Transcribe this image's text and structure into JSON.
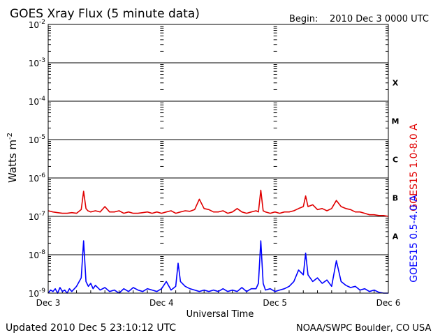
{
  "header": {
    "title": "GOES Xray Flux (5 minute data)",
    "begin_label": "Begin:",
    "begin_value": "2010 Dec 3 0000 UTC"
  },
  "footer": {
    "updated": "Updated 2010 Dec  5 23:10:12 UTC",
    "credit": "NOAA/SWPC Boulder, CO USA"
  },
  "colors": {
    "long_channel": "#e00000",
    "short_channel": "#0000ff",
    "frame": "#000000",
    "background": "#ffffff"
  },
  "chart_data": {
    "type": "line",
    "yscale": "log",
    "ylim": [
      1e-09,
      0.01
    ],
    "xlim": [
      0,
      72
    ],
    "x_unit": "hours since 2010 Dec 3 00:00 UTC",
    "ylabel": {
      "main": "Watts m",
      "exponent": "-2"
    },
    "xlabel": "Universal Time",
    "x_ticks": [
      {
        "x": 0,
        "label": "Dec 3"
      },
      {
        "x": 24,
        "label": "Dec 4"
      },
      {
        "x": 48,
        "label": "Dec 5"
      },
      {
        "x": 72,
        "label": "Dec 6"
      }
    ],
    "y_ticks": [
      {
        "value": 0.01,
        "base": "10",
        "exp": "-2"
      },
      {
        "value": 0.001,
        "base": "10",
        "exp": "-3"
      },
      {
        "value": 0.0001,
        "base": "10",
        "exp": "-4"
      },
      {
        "value": 1e-05,
        "base": "10",
        "exp": "-5"
      },
      {
        "value": 1e-06,
        "base": "10",
        "exp": "-6"
      },
      {
        "value": 1e-07,
        "base": "10",
        "exp": "-7"
      },
      {
        "value": 1e-08,
        "base": "10",
        "exp": "-8"
      },
      {
        "value": 1e-09,
        "base": "10",
        "exp": "-9"
      }
    ],
    "flare_classes": [
      {
        "label": "X",
        "value": 0.000316
      },
      {
        "label": "M",
        "value": 3.16e-05
      },
      {
        "label": "C",
        "value": 3.16e-06
      },
      {
        "label": "B",
        "value": 3.16e-07
      },
      {
        "label": "A",
        "value": 3.16e-08
      }
    ],
    "grid": true,
    "series": [
      {
        "name": "GOES15 1.0-8.0 A",
        "color": "#e00000",
        "x": [
          0,
          1,
          2,
          3,
          4,
          5,
          6,
          7,
          7.5,
          8,
          8.4,
          9,
          10,
          11,
          12,
          13,
          14,
          15,
          16,
          17,
          18,
          19,
          20,
          21,
          22,
          23,
          24,
          25,
          26,
          27,
          28,
          29,
          30,
          31,
          32,
          33,
          34,
          35,
          36,
          37,
          38,
          39,
          40,
          41,
          42,
          43,
          44,
          44.5,
          45,
          45.5,
          46,
          47,
          48,
          49,
          50,
          51,
          52,
          53,
          54,
          54.5,
          55,
          56,
          57,
          58,
          59,
          60,
          61,
          62,
          63,
          64,
          65,
          66,
          67,
          68,
          69,
          70,
          71,
          72
        ],
        "y": [
          1.4e-07,
          1.3e-07,
          1.25e-07,
          1.2e-07,
          1.2e-07,
          1.25e-07,
          1.2e-07,
          1.5e-07,
          4.5e-07,
          1.6e-07,
          1.4e-07,
          1.3e-07,
          1.4e-07,
          1.3e-07,
          1.8e-07,
          1.3e-07,
          1.3e-07,
          1.4e-07,
          1.2e-07,
          1.3e-07,
          1.2e-07,
          1.2e-07,
          1.25e-07,
          1.3e-07,
          1.2e-07,
          1.3e-07,
          1.2e-07,
          1.3e-07,
          1.4e-07,
          1.2e-07,
          1.3e-07,
          1.4e-07,
          1.35e-07,
          1.5e-07,
          2.8e-07,
          1.6e-07,
          1.5e-07,
          1.3e-07,
          1.3e-07,
          1.4e-07,
          1.2e-07,
          1.3e-07,
          1.6e-07,
          1.3e-07,
          1.2e-07,
          1.3e-07,
          1.4e-07,
          1.3e-07,
          4.8e-07,
          1.4e-07,
          1.3e-07,
          1.2e-07,
          1.3e-07,
          1.2e-07,
          1.3e-07,
          1.3e-07,
          1.4e-07,
          1.6e-07,
          1.8e-07,
          3.4e-07,
          1.8e-07,
          2e-07,
          1.5e-07,
          1.6e-07,
          1.4e-07,
          1.6e-07,
          2.6e-07,
          1.8e-07,
          1.6e-07,
          1.5e-07,
          1.3e-07,
          1.3e-07,
          1.2e-07,
          1.1e-07,
          1.1e-07,
          1.05e-07,
          1.05e-07,
          1e-07
        ]
      },
      {
        "name": "GOES15 0.5-4.0 A",
        "color": "#0000ff",
        "x": [
          0,
          0.5,
          1,
          1.5,
          2,
          2.5,
          3,
          3.5,
          4,
          4.5,
          5,
          6,
          7,
          7.5,
          8,
          8.5,
          9,
          9.5,
          10,
          11,
          12,
          13,
          14,
          15,
          16,
          17,
          18,
          19,
          20,
          21,
          22,
          23,
          24,
          25,
          26,
          27,
          27.5,
          28,
          29,
          30,
          31,
          32,
          33,
          34,
          35,
          36,
          37,
          38,
          39,
          40,
          41,
          42,
          43,
          44,
          44.5,
          45,
          45.5,
          46,
          47,
          48,
          49,
          50,
          51,
          52,
          53,
          54,
          54.5,
          55,
          56,
          57,
          58,
          59,
          60,
          61,
          62,
          63,
          64,
          65,
          66,
          67,
          68,
          69,
          70,
          71,
          72
        ],
        "y": [
          1e-09,
          1.2e-09,
          1.1e-09,
          1.3e-09,
          1e-09,
          1.4e-09,
          1.1e-09,
          1.2e-09,
          1e-09,
          1.3e-09,
          1.1e-09,
          1.5e-09,
          2.5e-09,
          2.3e-08,
          2e-09,
          1.5e-09,
          1.8e-09,
          1.3e-09,
          1.6e-09,
          1.2e-09,
          1.4e-09,
          1.1e-09,
          1.2e-09,
          1e-09,
          1.3e-09,
          1.1e-09,
          1.4e-09,
          1.2e-09,
          1.1e-09,
          1.3e-09,
          1.2e-09,
          1.1e-09,
          1.3e-09,
          2e-09,
          1.2e-09,
          1.5e-09,
          6e-09,
          2e-09,
          1.5e-09,
          1.3e-09,
          1.2e-09,
          1.1e-09,
          1.2e-09,
          1.1e-09,
          1.2e-09,
          1.1e-09,
          1.3e-09,
          1.1e-09,
          1.2e-09,
          1.1e-09,
          1.4e-09,
          1.1e-09,
          1.3e-09,
          1.3e-09,
          1.8e-09,
          2.3e-08,
          1.8e-09,
          1.2e-09,
          1.3e-09,
          1.1e-09,
          1.2e-09,
          1.3e-09,
          1.5e-09,
          2e-09,
          4e-09,
          3e-09,
          1.1e-08,
          3e-09,
          2e-09,
          2.5e-09,
          1.8e-09,
          2.2e-09,
          1.5e-09,
          7e-09,
          2e-09,
          1.6e-09,
          1.4e-09,
          1.5e-09,
          1.2e-09,
          1.3e-09,
          1.1e-09,
          1.2e-09,
          1.05e-09,
          1e-09,
          1e-09
        ]
      }
    ]
  }
}
